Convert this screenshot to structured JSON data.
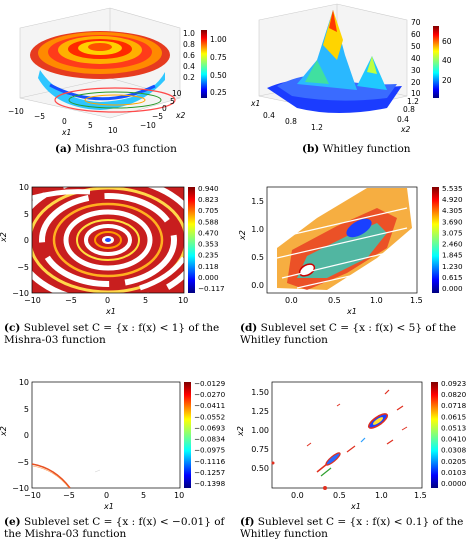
{
  "captions": {
    "a": {
      "tag": "(a)",
      "text": "Mishra-03 function"
    },
    "b": {
      "tag": "(b)",
      "text": "Whitley function"
    },
    "c": {
      "tag": "(c)",
      "text": "Sublevel set C = {x : f(x) < 1} of the Mishra-03 function"
    },
    "d": {
      "tag": "(d)",
      "text": "Sublevel set C = {x : f(x) < 5} of the Whitley function"
    },
    "e": {
      "tag": "(e)",
      "text": "Sublevel set C = {x : f(x) < −0.01} of the Mishra-03 function"
    },
    "f": {
      "tag": "(f)",
      "text": "Sublevel set C = {x : f(x) < 0.1} of the Whitley function"
    }
  },
  "panel_a": {
    "x_ticks": [
      "−10",
      "−5",
      "0",
      "5",
      "10"
    ],
    "y_ticks": [
      "−10",
      "−5",
      "0",
      "5",
      "10"
    ],
    "z_ticks": [
      "0.2",
      "0.4",
      "0.6",
      "0.8",
      "1.0"
    ],
    "xlabel": "x1",
    "ylabel": "x2",
    "colorbar_ticks": [
      "1.00",
      "0.75",
      "0.50",
      "0.25"
    ]
  },
  "panel_b": {
    "x_ticks": [
      "0.4",
      "0.8",
      "1.2"
    ],
    "y_ticks": [
      "0.4",
      "0.8",
      "1.2"
    ],
    "z_ticks": [
      "10",
      "20",
      "30",
      "40",
      "50",
      "60",
      "70"
    ],
    "xlabel": "x1",
    "ylabel": "x2",
    "colorbar_ticks": [
      "60",
      "40",
      "20"
    ]
  },
  "chart_data": [
    {
      "type": "heatmap",
      "panel": "c",
      "xlabel": "x1",
      "ylabel": "x2",
      "xlim": [
        -10,
        10
      ],
      "ylim": [
        -10,
        10
      ],
      "x_ticks": [
        "−10",
        "−5",
        "0",
        "5",
        "10"
      ],
      "y_ticks": [
        "10",
        "5",
        "0",
        "−5",
        "−10"
      ],
      "colorbar_ticks": [
        "0.940",
        "0.823",
        "0.705",
        "0.588",
        "0.470",
        "0.353",
        "0.235",
        "0.118",
        "0.000",
        "−0.117"
      ]
    },
    {
      "type": "heatmap",
      "panel": "d",
      "xlabel": "x1",
      "ylabel": "x2",
      "xlim": [
        -0.3,
        1.5
      ],
      "ylim": [
        -0.4,
        1.6
      ],
      "x_ticks": [
        "0.0",
        "0.5",
        "1.0",
        "1.5"
      ],
      "y_ticks": [
        "1.5",
        "1.0",
        "0.5",
        "0.0"
      ],
      "colorbar_ticks": [
        "5.535",
        "4.920",
        "4.305",
        "3.690",
        "3.075",
        "2.460",
        "1.845",
        "1.230",
        "0.615",
        "0.000"
      ]
    },
    {
      "type": "heatmap",
      "panel": "e",
      "xlabel": "x1",
      "ylabel": "x2",
      "xlim": [
        -10,
        10
      ],
      "ylim": [
        -10,
        10
      ],
      "x_ticks": [
        "−10",
        "−5",
        "0",
        "5",
        "10"
      ],
      "y_ticks": [
        "10",
        "5",
        "0",
        "−5",
        "−10"
      ],
      "colorbar_ticks": [
        "−0.0129",
        "−0.0270",
        "−0.0411",
        "−0.0552",
        "−0.0693",
        "−0.0834",
        "−0.0975",
        "−0.1116",
        "−0.1257",
        "−0.1398"
      ]
    },
    {
      "type": "heatmap",
      "panel": "f",
      "xlabel": "x1",
      "ylabel": "x2",
      "xlim": [
        -0.3,
        1.5
      ],
      "ylim": [
        -0.4,
        1.6
      ],
      "x_ticks": [
        "0.0",
        "0.5",
        "1.0",
        "1.5"
      ],
      "y_ticks": [
        "1.50",
        "1.25",
        "1.00",
        "0.75",
        "0.50"
      ],
      "colorbar_ticks": [
        "0.0923",
        "0.0820",
        "0.0718",
        "0.0615",
        "0.0513",
        "0.0410",
        "0.0308",
        "0.0205",
        "0.0103",
        "0.0000"
      ]
    }
  ]
}
